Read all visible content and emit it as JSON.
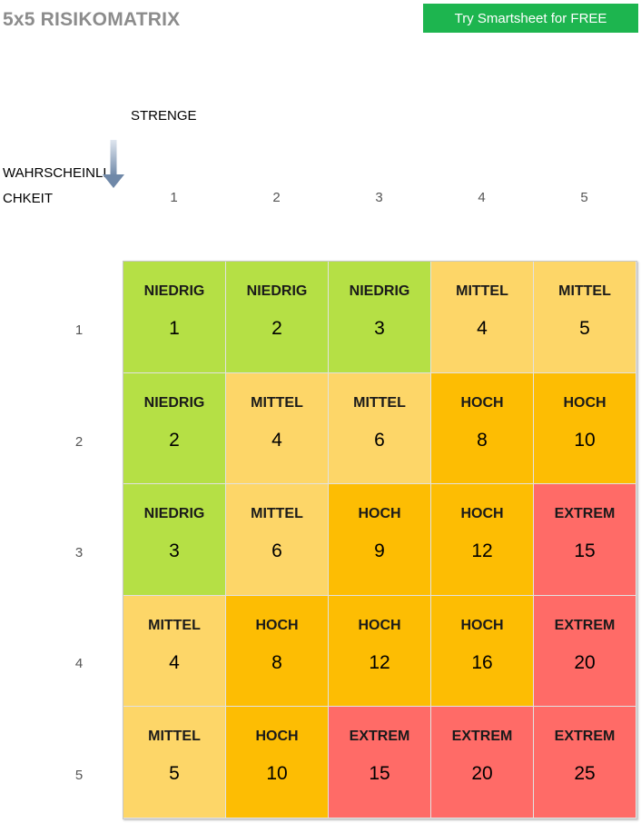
{
  "header": {
    "title": "5x5 RISIKOMATRIX",
    "cta_label": "Try Smartsheet for FREE"
  },
  "axes": {
    "severity_label": "STRENGE",
    "likelihood_label": "WAHRSCHEINLICHKEIT",
    "severity_values": [
      "1",
      "2",
      "3",
      "4",
      "5"
    ],
    "likelihood_values": [
      "1",
      "2",
      "3",
      "4",
      "5"
    ]
  },
  "colors": {
    "NIEDRIG": "#b5e045",
    "MITTEL": "#fdd668",
    "HOCH": "#fdbd03",
    "EXTREM": "#ff6b67",
    "cta": "#1db54f"
  },
  "matrix": [
    [
      {
        "level": "NIEDRIG",
        "score": "1"
      },
      {
        "level": "NIEDRIG",
        "score": "2"
      },
      {
        "level": "NIEDRIG",
        "score": "3"
      },
      {
        "level": "MITTEL",
        "score": "4"
      },
      {
        "level": "MITTEL",
        "score": "5"
      }
    ],
    [
      {
        "level": "NIEDRIG",
        "score": "2"
      },
      {
        "level": "MITTEL",
        "score": "4"
      },
      {
        "level": "MITTEL",
        "score": "6"
      },
      {
        "level": "HOCH",
        "score": "8"
      },
      {
        "level": "HOCH",
        "score": "10"
      }
    ],
    [
      {
        "level": "NIEDRIG",
        "score": "3"
      },
      {
        "level": "MITTEL",
        "score": "6"
      },
      {
        "level": "HOCH",
        "score": "9"
      },
      {
        "level": "HOCH",
        "score": "12"
      },
      {
        "level": "EXTREM",
        "score": "15"
      }
    ],
    [
      {
        "level": "MITTEL",
        "score": "4"
      },
      {
        "level": "HOCH",
        "score": "8"
      },
      {
        "level": "HOCH",
        "score": "12"
      },
      {
        "level": "HOCH",
        "score": "16"
      },
      {
        "level": "EXTREM",
        "score": "20"
      }
    ],
    [
      {
        "level": "MITTEL",
        "score": "5"
      },
      {
        "level": "HOCH",
        "score": "10"
      },
      {
        "level": "EXTREM",
        "score": "15"
      },
      {
        "level": "EXTREM",
        "score": "20"
      },
      {
        "level": "EXTREM",
        "score": "25"
      }
    ]
  ]
}
